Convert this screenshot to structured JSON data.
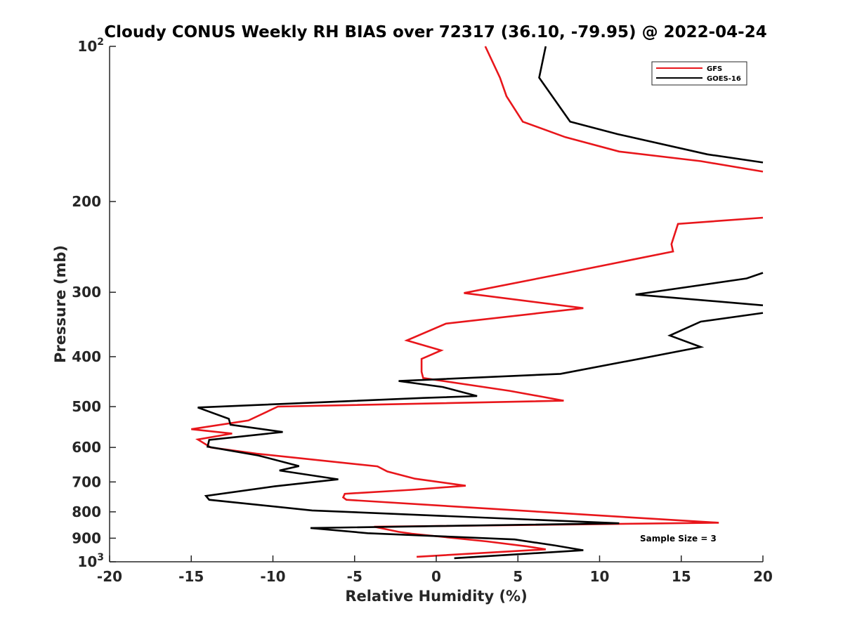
{
  "chart_data": {
    "type": "line",
    "title": "Cloudy CONUS Weekly RH BIAS over 72317 (36.10, -79.95) @ 2022-04-24",
    "xlabel": "Relative Humidity (%)",
    "ylabel": "Pressure (mb)",
    "xlim": [
      -20,
      20
    ],
    "ylim": [
      100,
      1000
    ],
    "y_scale": "log",
    "y_reversed": true,
    "grid": false,
    "legend_position": "top-right",
    "x_ticks": [
      "-20",
      "-15",
      "-10",
      "-5",
      "0",
      "5",
      "10",
      "15",
      "20"
    ],
    "y_ticks": [
      {
        "base": "10",
        "exp": "2",
        "value": 100
      },
      {
        "label": "200",
        "value": 200
      },
      {
        "label": "300",
        "value": 300
      },
      {
        "label": "400",
        "value": 400
      },
      {
        "label": "500",
        "value": 500
      },
      {
        "label": "600",
        "value": 600
      },
      {
        "label": "700",
        "value": 700
      },
      {
        "label": "800",
        "value": 800
      },
      {
        "label": "900",
        "value": 900
      },
      {
        "base": "10",
        "exp": "3",
        "value": 1000
      }
    ],
    "annotation": "Sample Size = 3",
    "series": [
      {
        "name": "GFS",
        "color": "#e8161b",
        "points": [
          [
            3.0,
            100
          ],
          [
            3.9,
            115
          ],
          [
            4.3,
            125
          ],
          [
            5.3,
            140
          ],
          [
            7.9,
            150
          ],
          [
            11.2,
            160
          ],
          [
            16.2,
            167
          ],
          [
            20.0,
            175
          ],
          null,
          [
            20.0,
            215
          ],
          [
            14.8,
            221
          ],
          [
            14.4,
            242
          ],
          [
            14.5,
            250
          ],
          [
            8.0,
            275
          ],
          [
            1.7,
            301
          ],
          [
            9.0,
            322
          ],
          [
            0.6,
            345
          ],
          [
            -1.8,
            372
          ],
          [
            0.3,
            389
          ],
          [
            -0.9,
            404
          ],
          [
            -0.9,
            428
          ],
          [
            -0.8,
            440
          ],
          [
            4.5,
            466
          ],
          [
            7.8,
            487
          ],
          [
            -9.7,
            500
          ],
          [
            -11.5,
            532
          ],
          [
            -15.0,
            553
          ],
          [
            -12.5,
            564
          ],
          [
            -14.6,
            579
          ],
          [
            -13.8,
            600
          ],
          [
            -11.0,
            617
          ],
          [
            -3.6,
            653
          ],
          [
            -3.0,
            668
          ],
          [
            -1.3,
            690
          ],
          [
            1.8,
            712
          ],
          [
            -1.5,
            725
          ],
          [
            -5.6,
            738
          ],
          [
            -5.7,
            750
          ],
          [
            -5.5,
            758
          ],
          [
            11.8,
            820
          ],
          [
            17.3,
            840
          ],
          [
            -3.8,
            855
          ],
          [
            -2.3,
            875
          ],
          [
            -1.5,
            882
          ],
          [
            3.1,
            913
          ],
          [
            5.5,
            933
          ],
          [
            6.7,
            946
          ],
          [
            -1.2,
            978
          ]
        ]
      },
      {
        "name": "GOES-16",
        "color": "#000000",
        "points": [
          [
            6.7,
            100
          ],
          [
            6.3,
            115
          ],
          [
            8.2,
            140
          ],
          [
            11.1,
            148
          ],
          [
            16.6,
            162
          ],
          [
            20.0,
            168
          ],
          null,
          [
            20.0,
            275
          ],
          [
            19.0,
            282
          ],
          [
            12.2,
            303
          ],
          [
            20.0,
            318
          ],
          null,
          [
            20.0,
            329
          ],
          [
            16.2,
            342
          ],
          [
            14.3,
            364
          ],
          [
            16.2,
            383
          ],
          [
            12.6,
            403
          ],
          [
            7.6,
            432
          ],
          [
            -2.3,
            446
          ],
          [
            0.4,
            458
          ],
          [
            2.5,
            477
          ],
          [
            -0.8,
            481
          ],
          [
            -14.6,
            502
          ],
          [
            -12.7,
            528
          ],
          [
            -12.6,
            542
          ],
          [
            -9.4,
            560
          ],
          [
            -13.9,
            580
          ],
          [
            -14.0,
            598
          ],
          [
            -10.9,
            622
          ],
          [
            -8.4,
            652
          ],
          [
            -9.6,
            665
          ],
          [
            -6.0,
            692
          ],
          [
            -9.9,
            714
          ],
          [
            -14.1,
            745
          ],
          [
            -13.9,
            758
          ],
          [
            -7.6,
            795
          ],
          [
            11.2,
            842
          ],
          [
            -7.7,
            860
          ],
          [
            -4.2,
            880
          ],
          [
            4.8,
            905
          ],
          [
            7.3,
            930
          ],
          [
            9.0,
            950
          ],
          [
            1.1,
            984
          ]
        ]
      }
    ]
  }
}
